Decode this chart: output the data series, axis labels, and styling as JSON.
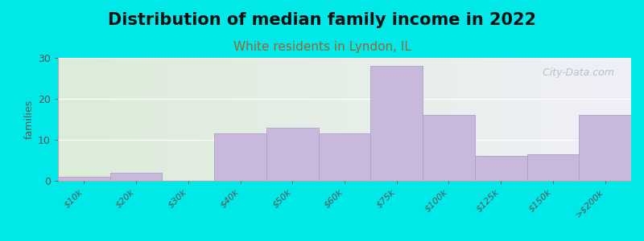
{
  "title": "Distribution of median family income in 2022",
  "subtitle": "White residents in Lyndon, IL",
  "ylabel": "families",
  "categories": [
    "$10k",
    "$20k",
    "$30k",
    "$40k",
    "$50k",
    "$60k",
    "$75k",
    "$100k",
    "$125k",
    "$150k",
    ">$200k"
  ],
  "values": [
    1,
    2,
    0,
    11.5,
    13,
    11.5,
    28,
    16,
    6,
    6.5,
    16
  ],
  "bar_color": "#c8b8dc",
  "bar_edge_color": "#b0a0c8",
  "bg_outer": "#00e8e8",
  "bg_plot_gradient_left": "#dcecd8",
  "bg_plot_gradient_right": "#f0f0f8",
  "ylim": [
    0,
    30
  ],
  "yticks": [
    0,
    10,
    20,
    30
  ],
  "title_fontsize": 15,
  "subtitle_fontsize": 11,
  "subtitle_color": "#996633",
  "ylabel_fontsize": 9,
  "ytick_fontsize": 9,
  "xtick_fontsize": 8,
  "watermark": "  City-Data.com",
  "watermark_color": "#b0b8c8",
  "watermark_fontsize": 9
}
